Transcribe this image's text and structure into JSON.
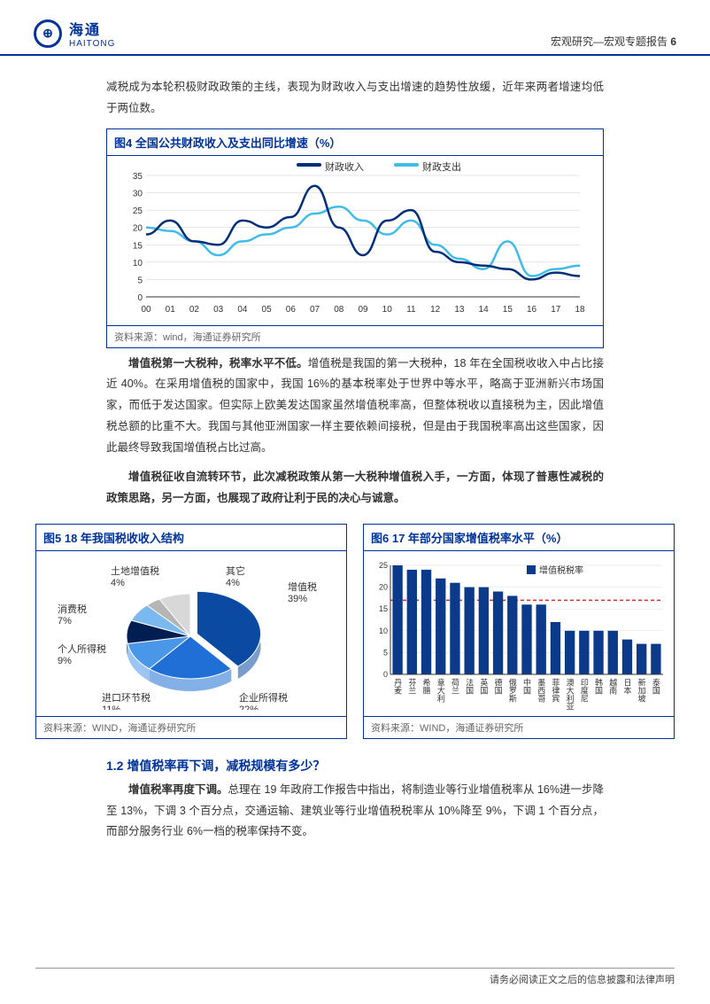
{
  "header": {
    "logo_main": "海通",
    "logo_sub": "HAITONG",
    "title": "宏观研究—宏观专题报告",
    "page": "6"
  },
  "para1": "减税成为本轮积极财政政策的主线，表现为财政收入与支出增速的趋势性放缓，近年来两者增速均低于两位数。",
  "fig4": {
    "title": "图4  全国公共财政收入及支出同比增速（%）",
    "legend": {
      "a": "财政收入",
      "b": "财政支出"
    },
    "x_labels": [
      "00",
      "01",
      "02",
      "03",
      "04",
      "05",
      "06",
      "07",
      "08",
      "09",
      "10",
      "11",
      "12",
      "13",
      "14",
      "15",
      "16",
      "17",
      "18"
    ],
    "y_ticks": [
      0,
      5,
      10,
      15,
      20,
      25,
      30,
      35
    ],
    "series_a": [
      18,
      22,
      16,
      15,
      22,
      20,
      23,
      32,
      20,
      12,
      22,
      25,
      13,
      10,
      9,
      8,
      5,
      7,
      6
    ],
    "series_b": [
      20,
      19,
      16,
      12,
      16,
      18,
      20,
      24,
      26,
      22,
      18,
      22,
      15,
      11,
      8,
      16,
      6,
      8,
      9
    ],
    "color_a": "#002e7a",
    "color_b": "#3fbce8",
    "source": "资料来源：wind，海通证券研究所"
  },
  "para2_bold": "增值税第一大税种，税率水平不低。",
  "para2": "增值税是我国的第一大税种，18 年在全国税收收入中占比接近 40%。在采用增值税的国家中，我国 16%的基本税率处于世界中等水平，略高于亚洲新兴市场国家，而低于发达国家。但实际上欧美发达国家虽然增值税率高，但整体税收以直接税为主，因此增值税总额的比重不大。我国与其他亚洲国家一样主要依赖间接税，但是由于我国税率高出这些国家，因此最终导致我国增值税占比过高。",
  "para3_bold": "增值税征收自流转环节，此次减税政策从第一大税种增值税入手，一方面，体现了普惠性减税的政策思路，另一方面，也展现了政府让利于民的决心与诚意。",
  "fig5": {
    "title": "图5  18 年我国税收收入结构",
    "slices": [
      {
        "label": "增值税",
        "pct": "39%",
        "color": "#0b4aa2",
        "start": -90,
        "end": 50
      },
      {
        "label": "企业所得税",
        "pct": "22%",
        "color": "#1f6fd6",
        "start": 50,
        "end": 130
      },
      {
        "label": "进口环节税",
        "pct": "11%",
        "color": "#4a96e8",
        "start": 130,
        "end": 170
      },
      {
        "label": "个人所得税",
        "pct": "9%",
        "color": "#001e52",
        "start": 170,
        "end": 202
      },
      {
        "label": "消费税",
        "pct": "7%",
        "color": "#7ab8f0",
        "start": 202,
        "end": 227
      },
      {
        "label": "土地增值税",
        "pct": "4%",
        "color": "#b5b5b5",
        "start": 227,
        "end": 241
      },
      {
        "label": "其它",
        "pct": "4%",
        "color": "#d8d8d8",
        "start": 241,
        "end": 270
      }
    ],
    "source": "资料来源：WIND，海通证券研究所"
  },
  "fig6": {
    "title": "图6  17 年部分国家增值税率水平（%）",
    "legend": "增值税税率",
    "y_ticks": [
      0,
      5,
      10,
      15,
      20,
      25
    ],
    "bars": [
      {
        "label": "丹麦",
        "v": 25
      },
      {
        "label": "芬兰",
        "v": 24
      },
      {
        "label": "希腊",
        "v": 24
      },
      {
        "label": "意大利",
        "v": 22
      },
      {
        "label": "荷兰",
        "v": 21
      },
      {
        "label": "法国",
        "v": 20
      },
      {
        "label": "英国",
        "v": 20
      },
      {
        "label": "德国",
        "v": 19
      },
      {
        "label": "俄罗斯",
        "v": 18
      },
      {
        "label": "中国",
        "v": 16
      },
      {
        "label": "墨西哥",
        "v": 16
      },
      {
        "label": "菲律宾",
        "v": 12
      },
      {
        "label": "澳大利亚",
        "v": 10
      },
      {
        "label": "印度尼",
        "v": 10
      },
      {
        "label": "韩国",
        "v": 10
      },
      {
        "label": "越南",
        "v": 10
      },
      {
        "label": "日本",
        "v": 8
      },
      {
        "label": "新加坡",
        "v": 7
      },
      {
        "label": "泰国",
        "v": 7
      }
    ],
    "bar_color": "#0b3a8a",
    "ref_line": 17,
    "ref_color": "#d4302a",
    "source": "资料来源：WIND，海通证券研究所"
  },
  "section": "1.2 增值税率再下调，减税规模有多少？",
  "para4_bold": "增值税率再度下调。",
  "para4": "总理在 19 年政府工作报告中指出，将制造业等行业增值税率从 16%进一步降至 13%，下调 3 个百分点，交通运输、建筑业等行业增值税税率从 10%降至 9%，下调 1 个百分点，而部分服务行业 6%一档的税率保持不变。",
  "footer": "请务必阅读正文之后的信息披露和法律声明"
}
